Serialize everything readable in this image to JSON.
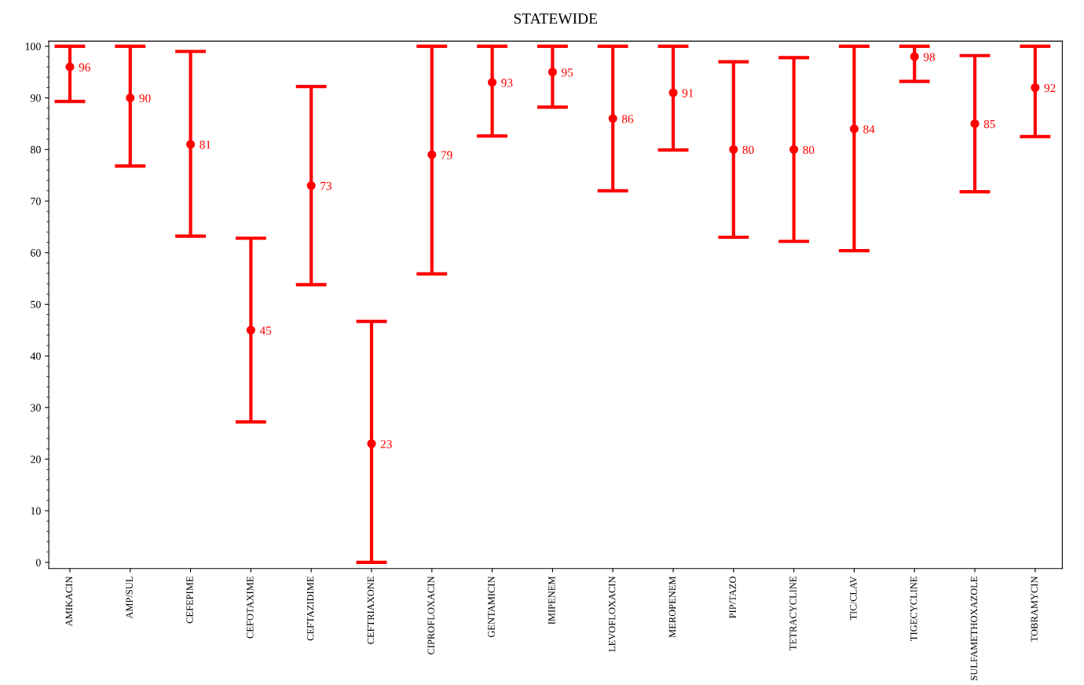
{
  "chart_data": {
    "type": "scatter",
    "title": "STATEWIDE",
    "categories": [
      "AMIKACIN",
      "AMP/SUL",
      "CEFEPIME",
      "CEFOTAXIME",
      "CEFTAZIDIME",
      "CEFTRIAXONE",
      "CIPROFLOXACIN",
      "GENTAMICIN",
      "IMIPENEM",
      "LEVOFLOXACIN",
      "MEROPENEM",
      "PIP/TAZO",
      "TETRACYCLINE",
      "TIC/CLAV",
      "TIGECYCLINE",
      "SULFAMETHOXAZOLE",
      "TOBRAMYCIN"
    ],
    "series": [
      {
        "color": "#ff0000",
        "values": [
          96,
          90,
          81,
          45,
          73,
          23,
          79,
          93,
          95,
          86,
          91,
          80,
          80,
          84,
          98,
          85,
          92
        ],
        "errors": [
          [
            89.3,
            100
          ],
          [
            76.8,
            100
          ],
          [
            63.2,
            99
          ],
          [
            27.2,
            62.8
          ],
          [
            53.8,
            92.2
          ],
          [
            0,
            46.7
          ],
          [
            55.9,
            100
          ],
          [
            82.6,
            100
          ],
          [
            88.2,
            100
          ],
          [
            72,
            100
          ],
          [
            79.9,
            100
          ],
          [
            63,
            97
          ],
          [
            62.2,
            97.8
          ],
          [
            60.4,
            100
          ],
          [
            93.2,
            100
          ],
          [
            71.8,
            98.2
          ],
          [
            82.5,
            100
          ]
        ]
      }
    ],
    "ylim": [
      -1.2,
      101
    ],
    "yticks": [
      0,
      10,
      20,
      30,
      40,
      50,
      60,
      70,
      80,
      90,
      100
    ],
    "data_labels": true,
    "grid": false,
    "marker": "circle",
    "legend": false
  }
}
